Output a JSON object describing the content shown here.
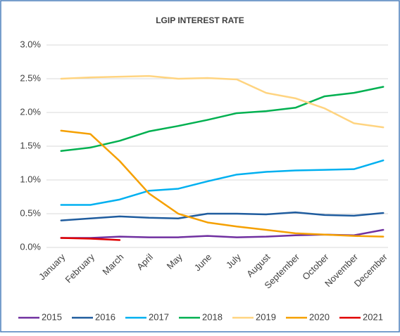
{
  "chart_data": {
    "type": "line",
    "title": "LGIP INTEREST RATE",
    "categories": [
      "January",
      "February",
      "March",
      "April",
      "May",
      "June",
      "July",
      "August",
      "September",
      "October",
      "November",
      "December"
    ],
    "series": [
      {
        "name": "2015",
        "color": "#7030a0",
        "values": [
          0.14,
          0.14,
          0.16,
          0.15,
          0.15,
          0.17,
          0.15,
          0.16,
          0.18,
          0.19,
          0.18,
          0.26
        ]
      },
      {
        "name": "2016",
        "color": "#1f5c9e",
        "values": [
          0.4,
          0.43,
          0.46,
          0.44,
          0.43,
          0.5,
          0.5,
          0.49,
          0.52,
          0.48,
          0.47,
          0.51
        ]
      },
      {
        "name": "2017",
        "color": "#00b0f0",
        "values": [
          0.63,
          0.63,
          0.71,
          0.84,
          0.87,
          0.98,
          1.08,
          1.12,
          1.14,
          1.15,
          1.16,
          1.29
        ]
      },
      {
        "name": "2018",
        "color": "#00b050",
        "values": [
          1.43,
          1.48,
          1.58,
          1.72,
          1.8,
          1.89,
          1.99,
          2.02,
          2.07,
          2.24,
          2.29,
          2.38
        ]
      },
      {
        "name": "2019",
        "color": "#ffd480",
        "values": [
          2.5,
          2.52,
          2.53,
          2.54,
          2.5,
          2.51,
          2.49,
          2.29,
          2.21,
          2.06,
          1.84,
          1.78
        ]
      },
      {
        "name": "2020",
        "color": "#f5a000",
        "values": [
          1.73,
          1.68,
          1.28,
          0.8,
          0.5,
          0.37,
          0.31,
          0.26,
          0.21,
          0.19,
          0.17,
          0.16
        ]
      },
      {
        "name": "2021",
        "color": "#e00000",
        "values": [
          0.14,
          0.13,
          0.11,
          null,
          null,
          null,
          null,
          null,
          null,
          null,
          null,
          null
        ]
      }
    ],
    "ylim": [
      0,
      3.0
    ],
    "yticks": [
      {
        "value": 0,
        "label": "0.0%"
      },
      {
        "value": 0.5,
        "label": "0.5%"
      },
      {
        "value": 1.0,
        "label": "1.0%"
      },
      {
        "value": 1.5,
        "label": "1.5%"
      },
      {
        "value": 2.0,
        "label": "2.0%"
      },
      {
        "value": 2.5,
        "label": "2.5%"
      },
      {
        "value": 3.0,
        "label": "3.0%"
      }
    ],
    "grid": true,
    "legend": "bottom"
  }
}
